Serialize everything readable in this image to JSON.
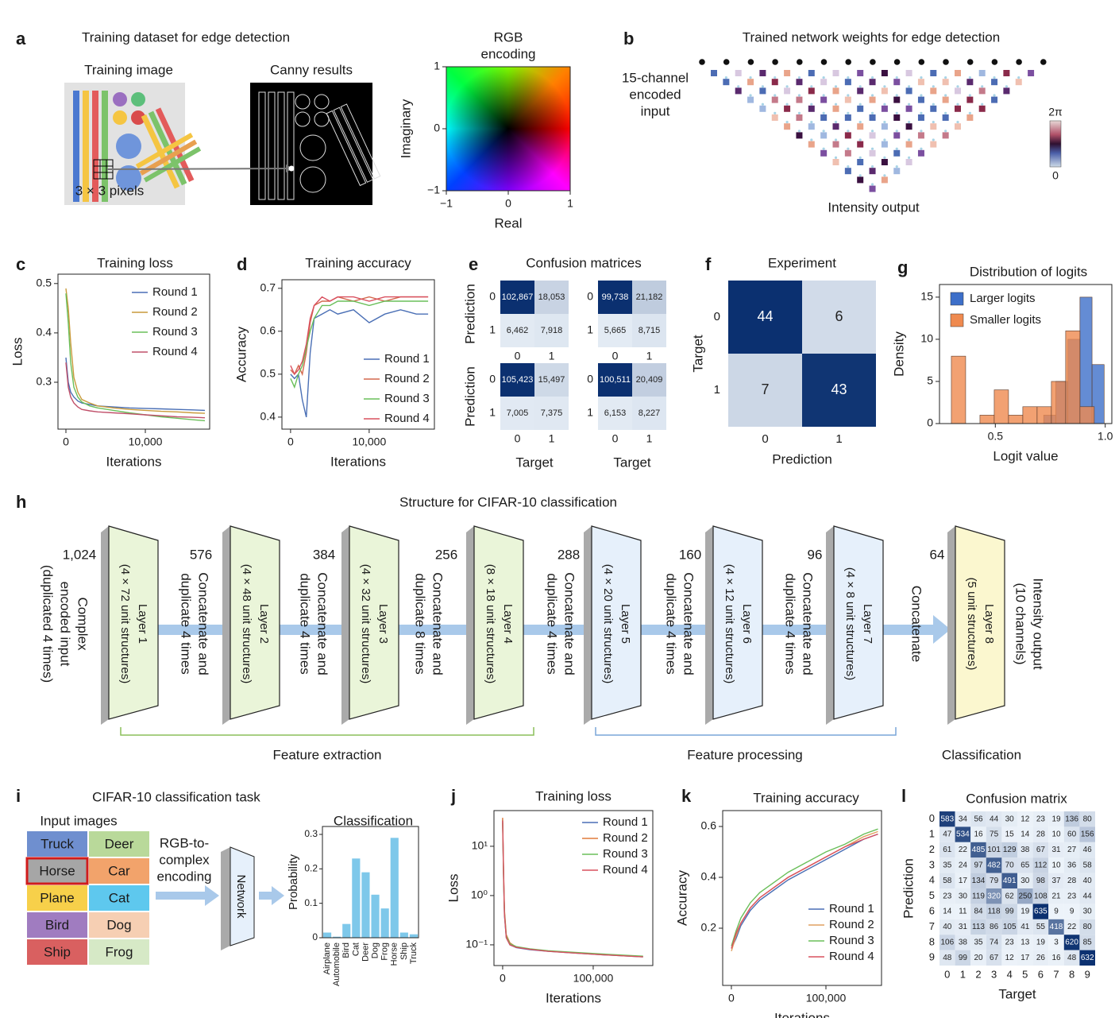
{
  "diagram": {
    "panel_labels": [
      "a",
      "b",
      "c",
      "d",
      "e",
      "f",
      "g",
      "h",
      "i",
      "j",
      "k",
      "l"
    ],
    "a": {
      "title": "Training dataset for edge detection",
      "training_image": "Training image",
      "canny": "Canny results",
      "pixels": "3 × 3 pixels"
    },
    "b": {
      "title": "Trained network weights for edge detection",
      "input": [
        "15-channel",
        "encoded",
        "input"
      ],
      "output": "Intensity output",
      "colorbar_ticks": [
        0,
        {
          "value": 6.283,
          "label": "2π"
        }
      ]
    },
    "h": {
      "title": "Structure for CIFAR-10 classification",
      "input": [
        "Complex",
        "encoded input",
        "(duplicated 4 times)"
      ],
      "channels": [
        {
          "value": 1024,
          "label": "1,024"
        },
        576,
        384,
        256,
        288,
        160,
        96,
        64
      ],
      "layers": [
        {
          "name": "Layer 1",
          "detail": "(4 × 72 unit structures)"
        },
        {
          "name": "Layer 2",
          "detail": "(4 × 48 unit structures)"
        },
        {
          "name": "Layer 3",
          "detail": "(4 × 32 unit structures)"
        },
        {
          "name": "Layer 4",
          "detail": "(8 × 18 unit structures)"
        },
        {
          "name": "Layer 5",
          "detail": "(4 × 20 unit structures)"
        },
        {
          "name": "Layer 6",
          "detail": "(4 × 12 unit structures)"
        },
        {
          "name": "Layer 7",
          "detail": "(4 × 8 unit structures)"
        },
        {
          "name": "Layer 8",
          "detail": "(5 unit structures)"
        }
      ],
      "connectors": [
        [
          "Concatenate and",
          "duplicate 4 times"
        ],
        [
          "Concatenate and",
          "duplicate 4 times"
        ],
        [
          "Concatenate and",
          "duplicate 8 times"
        ],
        [
          "Concatenate and",
          "duplicate 4 times"
        ],
        [
          "Concatenate and",
          "duplicate 4 times"
        ],
        [
          "Concatenate and",
          "duplicate 4 times"
        ],
        [
          "Concatenate"
        ]
      ],
      "output": [
        "Intensity output",
        "(10 channels)"
      ],
      "groups": [
        "Feature extraction",
        "Feature processing",
        "Classification"
      ]
    },
    "i": {
      "title": "CIFAR-10 classification task",
      "input_images": "Input images",
      "classes": [
        [
          "Truck",
          "Deer"
        ],
        [
          "Horse",
          "Car"
        ],
        [
          "Plane",
          "Cat"
        ],
        [
          "Bird",
          "Dog"
        ],
        [
          "Ship",
          "Frog"
        ]
      ],
      "encoding": [
        "RGB-to-",
        "complex",
        "encoding"
      ],
      "network": "Network"
    }
  },
  "chart_data": [
    {
      "type": "line",
      "title": "Training loss",
      "xlabel": "Iterations",
      "ylabel": "Loss",
      "xlim": [
        -1000,
        18100
      ],
      "ylim": [
        0.205,
        0.519
      ],
      "xticks": [
        0,
        {
          "value": 10000,
          "label": "10,000"
        }
      ],
      "yticks": [
        0.3,
        0.4,
        0.5
      ],
      "legend": "upper right",
      "x": [
        0,
        300,
        600,
        1000,
        1500,
        2000,
        3000,
        4000,
        6000,
        8000,
        10000,
        12000,
        14000,
        16000,
        17500
      ],
      "series": [
        {
          "name": "Round 1",
          "color": "#4a6fb5",
          "values": [
            0.35,
            0.3,
            0.28,
            0.27,
            0.262,
            0.258,
            0.255,
            0.252,
            0.25,
            0.248,
            0.247,
            0.246,
            0.245,
            0.244,
            0.243
          ]
        },
        {
          "name": "Round 2",
          "color": "#c99a3b",
          "values": [
            0.49,
            0.45,
            0.38,
            0.31,
            0.28,
            0.265,
            0.258,
            0.252,
            0.248,
            0.245,
            0.243,
            0.241,
            0.24,
            0.238,
            0.237
          ]
        },
        {
          "name": "Round 3",
          "color": "#6abf5a",
          "values": [
            0.48,
            0.42,
            0.34,
            0.29,
            0.27,
            0.26,
            0.252,
            0.248,
            0.243,
            0.238,
            0.234,
            0.23,
            0.227,
            0.224,
            0.222
          ]
        },
        {
          "name": "Round 4",
          "color": "#c0506a",
          "values": [
            0.34,
            0.29,
            0.27,
            0.258,
            0.25,
            0.245,
            0.242,
            0.24,
            0.238,
            0.236,
            0.234,
            0.232,
            0.23,
            0.229,
            0.228
          ]
        }
      ]
    },
    {
      "type": "line",
      "title": "Training accuracy",
      "xlabel": "Iterations",
      "ylabel": "Accuracy",
      "xlim": [
        -1100,
        18300
      ],
      "ylim": [
        0.372,
        0.72
      ],
      "xticks": [
        0,
        {
          "value": 10000,
          "label": "10,000"
        }
      ],
      "yticks": [
        0.4,
        0.5,
        0.6,
        0.7
      ],
      "legend": "lower right",
      "x": [
        0,
        500,
        1000,
        1500,
        2000,
        2500,
        3000,
        4000,
        5000,
        6000,
        8000,
        10000,
        12000,
        14000,
        16000,
        17500
      ],
      "series": [
        {
          "name": "Round 1",
          "color": "#4a6fb5",
          "values": [
            0.5,
            0.49,
            0.5,
            0.44,
            0.4,
            0.55,
            0.63,
            0.64,
            0.65,
            0.64,
            0.65,
            0.62,
            0.64,
            0.65,
            0.64,
            0.64
          ]
        },
        {
          "name": "Round 2",
          "color": "#d4684e",
          "values": [
            0.51,
            0.5,
            0.52,
            0.5,
            0.55,
            0.62,
            0.66,
            0.67,
            0.67,
            0.68,
            0.67,
            0.68,
            0.67,
            0.68,
            0.68,
            0.68
          ]
        },
        {
          "name": "Round 3",
          "color": "#6abf5a",
          "values": [
            0.49,
            0.47,
            0.5,
            0.52,
            0.56,
            0.6,
            0.63,
            0.66,
            0.66,
            0.67,
            0.67,
            0.66,
            0.67,
            0.67,
            0.67,
            0.67
          ]
        },
        {
          "name": "Round 4",
          "color": "#d9505f",
          "values": [
            0.52,
            0.5,
            0.51,
            0.53,
            0.57,
            0.63,
            0.66,
            0.68,
            0.67,
            0.68,
            0.68,
            0.67,
            0.68,
            0.68,
            0.68,
            0.68
          ]
        }
      ]
    },
    {
      "type": "heatmap",
      "title": "Confusion matrices",
      "ylabel": "Prediction",
      "x_categories": [
        0,
        1
      ],
      "y_categories": [
        0,
        1
      ],
      "values": [
        [
          102867,
          18053
        ],
        [
          6462,
          7918
        ]
      ],
      "value_labels": [
        [
          "102,867",
          "18,053"
        ],
        [
          "6,462",
          "7,918"
        ]
      ]
    },
    {
      "type": "heatmap",
      "x_categories": [
        0,
        1
      ],
      "y_categories": [
        0,
        1
      ],
      "values": [
        [
          99738,
          21182
        ],
        [
          5665,
          8715
        ]
      ],
      "value_labels": [
        [
          "99,738",
          "21,182"
        ],
        [
          "5,665",
          "8,715"
        ]
      ]
    },
    {
      "type": "heatmap",
      "ylabel": "Prediction",
      "xlabel": "Target",
      "x_categories": [
        0,
        1
      ],
      "y_categories": [
        0,
        1
      ],
      "values": [
        [
          105423,
          15497
        ],
        [
          7005,
          7375
        ]
      ],
      "value_labels": [
        [
          "105,423",
          "15,497"
        ],
        [
          "7,005",
          "7,375"
        ]
      ]
    },
    {
      "type": "heatmap",
      "xlabel": "Target",
      "x_categories": [
        0,
        1
      ],
      "y_categories": [
        0,
        1
      ],
      "values": [
        [
          100511,
          20409
        ],
        [
          6153,
          8227
        ]
      ],
      "value_labels": [
        [
          "100,511",
          "20,409"
        ],
        [
          "6,153",
          "8,227"
        ]
      ]
    },
    {
      "type": "heatmap",
      "title": "Experiment",
      "xlabel": "Prediction",
      "ylabel": "Target",
      "x_categories": [
        0,
        1
      ],
      "y_categories": [
        0,
        1
      ],
      "values": [
        [
          44,
          6
        ],
        [
          7,
          43
        ]
      ]
    },
    {
      "type": "histogram",
      "title": "Distribution of logits",
      "xlabel": "Logit value",
      "ylabel": "Density",
      "xlim": [
        0.246,
        1.03
      ],
      "ylim": [
        0,
        16.5
      ],
      "xticks": [
        0.5,
        {
          "value": 1,
          "label": "1.0"
        }
      ],
      "yticks": [
        0,
        5,
        10,
        15
      ],
      "legend": "upper left",
      "series": [
        {
          "name": "Larger logits",
          "color": "#3d6fc9",
          "bins": [
            0.72,
            0.775,
            0.83,
            0.885,
            0.94,
            0.995
          ],
          "values": [
            1,
            5,
            10,
            15,
            7
          ]
        },
        {
          "name": "Smaller logits",
          "color": "#ef8a4f",
          "bins": [
            0.3,
            0.365,
            0.43,
            0.495,
            0.56,
            0.625,
            0.69,
            0.755,
            0.82,
            0.885,
            0.95
          ],
          "values": [
            8,
            0,
            1,
            4,
            1,
            2,
            2,
            5,
            11,
            2
          ]
        }
      ]
    },
    {
      "type": "bar",
      "title": "Classification",
      "ylabel": "Probability",
      "ylim": [
        0,
        0.323
      ],
      "yticks": [
        0,
        0.1,
        0.2,
        0.3
      ],
      "color": "#7ec8ea",
      "categories": [
        "Airplane",
        "Automobile",
        "Bird",
        "Cat",
        "Deer",
        "Dog",
        "Frog",
        "Horse",
        "Ship",
        "Truck"
      ],
      "values": [
        0.015,
        0.003,
        0.04,
        0.23,
        0.19,
        0.125,
        0.085,
        0.29,
        0.015,
        0.01
      ]
    },
    {
      "type": "line",
      "title": "Training loss",
      "xlabel": "Iterations",
      "ylabel": "Loss",
      "log_y": true,
      "xlim": [
        -9600,
        165800
      ],
      "ylim": [
        0.038,
        53
      ],
      "xticks": [
        0,
        {
          "value": 100000,
          "label": "100,000"
        }
      ],
      "yticks": [
        {
          "value": 0.1,
          "label": "10⁻¹"
        },
        {
          "value": 1,
          "label": "10⁰"
        },
        {
          "value": 10,
          "label": "10¹"
        }
      ],
      "legend": "upper right",
      "x": [
        0,
        1000,
        2000,
        4000,
        8000,
        15000,
        30000,
        50000,
        80000,
        110000,
        140000,
        155000
      ],
      "series": [
        {
          "name": "Round 1",
          "color": "#4a6fb5",
          "values": [
            35,
            2.5,
            0.4,
            0.14,
            0.1,
            0.088,
            0.08,
            0.074,
            0.068,
            0.063,
            0.059,
            0.057
          ]
        },
        {
          "name": "Round 2",
          "color": "#e07b3c",
          "values": [
            38,
            3,
            0.5,
            0.16,
            0.11,
            0.09,
            0.082,
            0.075,
            0.069,
            0.064,
            0.06,
            0.058
          ]
        },
        {
          "name": "Round 3",
          "color": "#6abf5a",
          "values": [
            30,
            2.2,
            0.45,
            0.15,
            0.105,
            0.092,
            0.083,
            0.076,
            0.07,
            0.065,
            0.061,
            0.059
          ]
        },
        {
          "name": "Round 4",
          "color": "#d9505f",
          "values": [
            33,
            2.8,
            0.42,
            0.14,
            0.1,
            0.089,
            0.081,
            0.074,
            0.068,
            0.063,
            0.059,
            0.057
          ]
        }
      ]
    },
    {
      "type": "line",
      "title": "Training accuracy",
      "xlabel": "Iterations",
      "ylabel": "Accuracy",
      "xlim": [
        -9200,
        158800
      ],
      "ylim": [
        -0.025,
        0.6625
      ],
      "xticks": [
        0,
        {
          "value": 100000,
          "label": "100,000"
        }
      ],
      "yticks": [
        0.2,
        0.4,
        0.6
      ],
      "legend": "lower right",
      "x": [
        0,
        5000,
        10000,
        20000,
        30000,
        45000,
        60000,
        80000,
        100000,
        120000,
        140000,
        155000
      ],
      "series": [
        {
          "name": "Round 1",
          "color": "#4a6fb5",
          "values": [
            0.12,
            0.16,
            0.21,
            0.27,
            0.31,
            0.35,
            0.39,
            0.43,
            0.47,
            0.51,
            0.55,
            0.57
          ]
        },
        {
          "name": "Round 2",
          "color": "#e0a060",
          "values": [
            0.11,
            0.17,
            0.22,
            0.28,
            0.32,
            0.36,
            0.4,
            0.44,
            0.48,
            0.52,
            0.56,
            0.58
          ]
        },
        {
          "name": "Round 3",
          "color": "#6abf5a",
          "values": [
            0.13,
            0.19,
            0.24,
            0.3,
            0.34,
            0.38,
            0.42,
            0.46,
            0.5,
            0.53,
            0.57,
            0.59
          ]
        },
        {
          "name": "Round 4",
          "color": "#d9505f",
          "values": [
            0.12,
            0.18,
            0.22,
            0.28,
            0.32,
            0.36,
            0.4,
            0.44,
            0.48,
            0.52,
            0.55,
            0.57
          ]
        }
      ]
    },
    {
      "type": "heatmap",
      "title": "Confusion matrix",
      "xlabel": "Target",
      "ylabel": "Prediction",
      "x_categories": [
        0,
        1,
        2,
        3,
        4,
        5,
        6,
        7,
        8,
        9
      ],
      "y_categories": [
        0,
        1,
        2,
        3,
        4,
        5,
        6,
        7,
        8,
        9
      ],
      "values": [
        [
          583,
          34,
          56,
          44,
          30,
          12,
          23,
          19,
          136,
          80
        ],
        [
          47,
          534,
          16,
          75,
          15,
          14,
          28,
          10,
          60,
          156
        ],
        [
          61,
          22,
          485,
          101,
          129,
          38,
          67,
          31,
          27,
          46
        ],
        [
          35,
          24,
          97,
          482,
          70,
          65,
          112,
          10,
          36,
          58
        ],
        [
          58,
          17,
          134,
          79,
          491,
          30,
          98,
          37,
          28,
          40
        ],
        [
          23,
          30,
          119,
          320,
          62,
          250,
          108,
          21,
          23,
          44
        ],
        [
          14,
          11,
          84,
          118,
          99,
          19,
          635,
          9,
          9,
          30
        ],
        [
          40,
          31,
          113,
          86,
          105,
          41,
          55,
          418,
          22,
          80
        ],
        [
          106,
          38,
          35,
          74,
          23,
          13,
          19,
          3,
          620,
          85
        ],
        [
          48,
          99,
          20,
          67,
          12,
          17,
          26,
          16,
          48,
          632
        ]
      ]
    },
    {
      "type": "colormap",
      "title": [
        "RGB",
        "encoding"
      ],
      "xlabel": "Real",
      "ylabel": "Imaginary",
      "xlim": [
        -1,
        1
      ],
      "ylim": [
        -1,
        1
      ],
      "xticks": [
        {
          "value": -1,
          "label": "−1"
        },
        0,
        1
      ],
      "yticks": [
        {
          "value": -1,
          "label": "−1"
        },
        0,
        1
      ]
    }
  ]
}
